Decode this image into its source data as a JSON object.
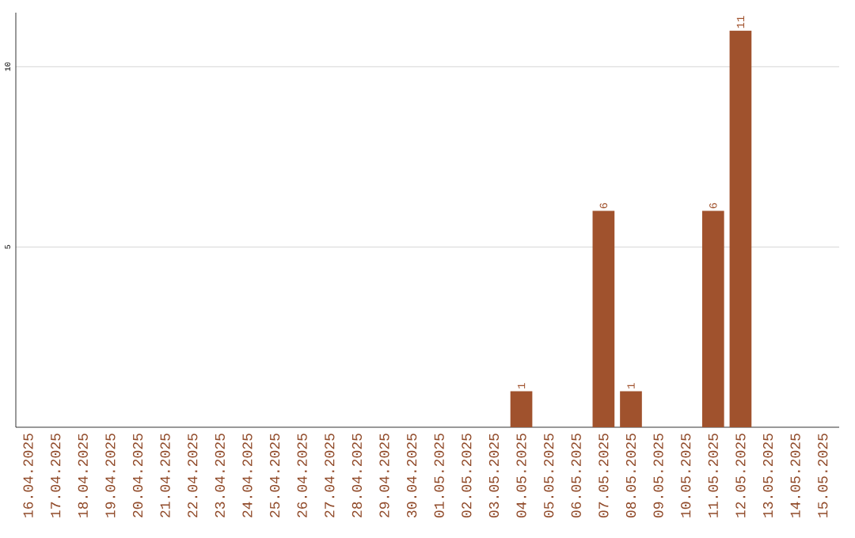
{
  "chart_data": {
    "type": "bar",
    "categories": [
      "16.04.2025",
      "17.04.2025",
      "18.04.2025",
      "19.04.2025",
      "20.04.2025",
      "21.04.2025",
      "22.04.2025",
      "23.04.2025",
      "24.04.2025",
      "25.04.2025",
      "26.04.2025",
      "27.04.2025",
      "28.04.2025",
      "29.04.2025",
      "30.04.2025",
      "01.05.2025",
      "02.05.2025",
      "03.05.2025",
      "04.05.2025",
      "05.05.2025",
      "06.05.2025",
      "07.05.2025",
      "08.05.2025",
      "09.05.2025",
      "10.05.2025",
      "11.05.2025",
      "12.05.2025",
      "13.05.2025",
      "14.05.2025",
      "15.05.2025"
    ],
    "values": [
      0,
      0,
      0,
      0,
      0,
      0,
      0,
      0,
      0,
      0,
      0,
      0,
      0,
      0,
      0,
      0,
      0,
      0,
      1,
      0,
      0,
      6,
      1,
      0,
      0,
      6,
      11,
      0,
      0,
      0
    ],
    "value_labels": [
      null,
      null,
      null,
      null,
      null,
      null,
      null,
      null,
      null,
      null,
      null,
      null,
      null,
      null,
      null,
      null,
      null,
      null,
      "1",
      null,
      null,
      "6",
      "1",
      null,
      null,
      "6",
      "11",
      null,
      null,
      null
    ],
    "color": "#a0522d",
    "ylim": [
      0,
      11.5
    ],
    "yticks": [
      5,
      10
    ],
    "grid": "y"
  }
}
